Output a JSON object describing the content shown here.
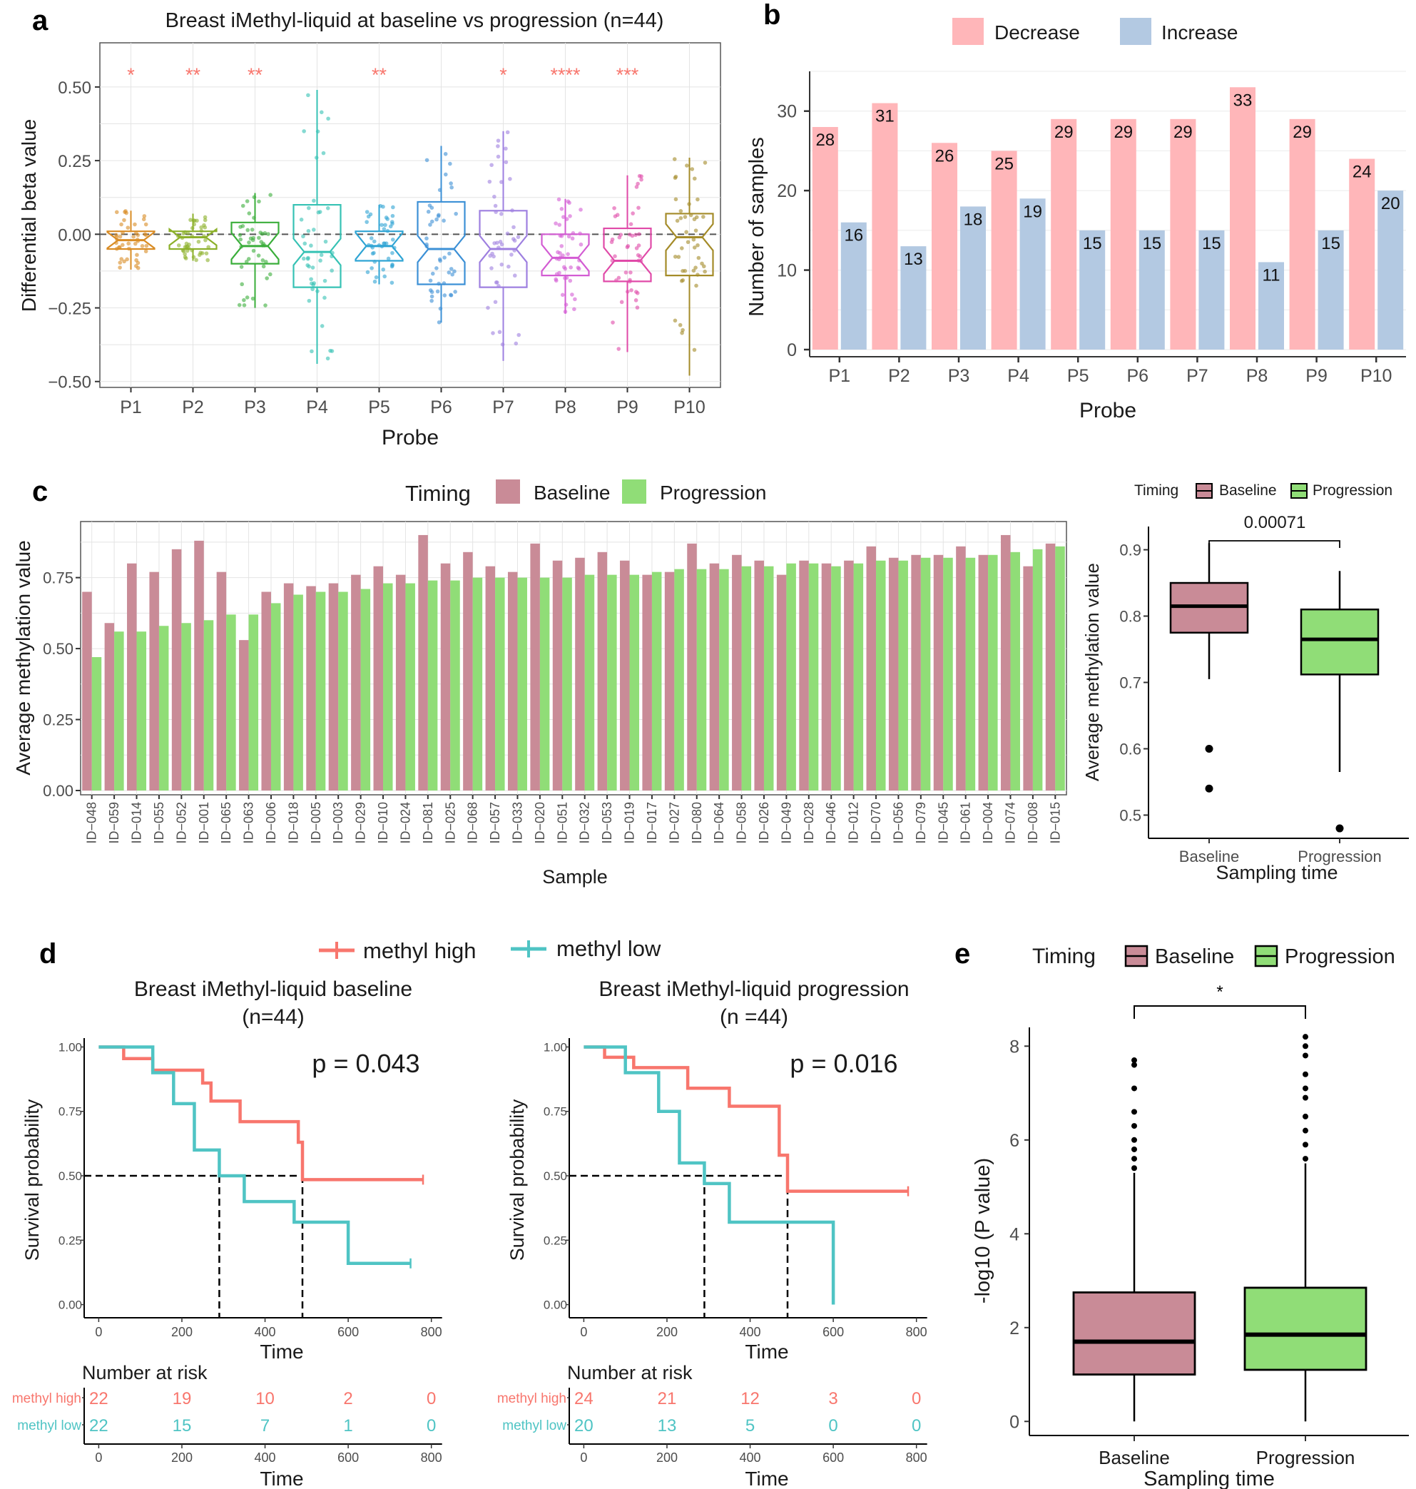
{
  "figure": {
    "panel_letters": [
      "a",
      "b",
      "c",
      "d",
      "e"
    ],
    "colors": {
      "baseline": "#C98B97",
      "progression": "#90DD77",
      "decrease": "#FFB6B9",
      "increase": "#B3C9E2",
      "methyl_high": "#F8766D",
      "methyl_low": "#4FC4C4",
      "star": "#F8766D",
      "grid": "#E4E4E4"
    }
  },
  "chart_data": [
    {
      "id": "a",
      "type": "box",
      "title": "Breast iMethyl-liquid at baseline vs progression (n=44)",
      "xlabel": "Probe",
      "ylabel": "Differential beta value",
      "ylim": [
        -0.52,
        0.65
      ],
      "yticks": [
        -0.5,
        -0.25,
        0.0,
        0.25,
        0.5
      ],
      "ytick_labels": [
        "−0.50",
        "−0.25",
        "0.00",
        "0.25",
        "0.50"
      ],
      "reference_line": 0,
      "categories": [
        "P1",
        "P2",
        "P3",
        "P4",
        "P5",
        "P6",
        "P7",
        "P8",
        "P9",
        "P10"
      ],
      "colors": [
        "#D98C24",
        "#8CB02A",
        "#3AAE3A",
        "#36C2B4",
        "#2EA4D4",
        "#3C90D6",
        "#9E7FE0",
        "#D35CD3",
        "#E04AA8",
        "#A48B28"
      ],
      "significance": [
        "*",
        "**",
        "**",
        "",
        "**",
        "",
        "*",
        "****",
        "***",
        ""
      ],
      "boxes": [
        {
          "min": -0.12,
          "q1": -0.05,
          "median": -0.02,
          "q3": 0.01,
          "max": 0.08
        },
        {
          "min": -0.09,
          "q1": -0.05,
          "median": -0.01,
          "q3": 0.01,
          "max": 0.07
        },
        {
          "min": -0.25,
          "q1": -0.1,
          "median": -0.04,
          "q3": 0.04,
          "max": 0.14
        },
        {
          "min": -0.44,
          "q1": -0.18,
          "median": -0.06,
          "q3": 0.1,
          "max": 0.49
        },
        {
          "min": -0.17,
          "q1": -0.09,
          "median": -0.04,
          "q3": 0.01,
          "max": 0.1
        },
        {
          "min": -0.3,
          "q1": -0.17,
          "median": -0.05,
          "q3": 0.11,
          "max": 0.3
        },
        {
          "min": -0.43,
          "q1": -0.18,
          "median": -0.05,
          "q3": 0.08,
          "max": 0.35
        },
        {
          "min": -0.27,
          "q1": -0.14,
          "median": -0.08,
          "q3": 0.0,
          "max": 0.12
        },
        {
          "min": -0.4,
          "q1": -0.16,
          "median": -0.09,
          "q3": 0.02,
          "max": 0.2
        },
        {
          "min": -0.48,
          "q1": -0.14,
          "median": -0.01,
          "q3": 0.07,
          "max": 0.26
        }
      ]
    },
    {
      "id": "b",
      "type": "bar",
      "xlabel": "Probe",
      "ylabel": "Number of samples",
      "ylim": [
        0,
        35
      ],
      "yticks": [
        0,
        10,
        20,
        30
      ],
      "categories": [
        "P1",
        "P2",
        "P3",
        "P4",
        "P5",
        "P6",
        "P7",
        "P8",
        "P9",
        "P10"
      ],
      "series": [
        {
          "name": "Decrease",
          "values": [
            28,
            31,
            26,
            25,
            29,
            29,
            29,
            33,
            29,
            24
          ]
        },
        {
          "name": "Increase",
          "values": [
            16,
            13,
            18,
            19,
            15,
            15,
            15,
            11,
            15,
            20
          ]
        }
      ]
    },
    {
      "id": "c-bars",
      "type": "bar",
      "legend_title": "Timing",
      "xlabel": "Sample",
      "ylabel": "Average methylation value",
      "ylim": [
        0,
        0.93
      ],
      "yticks": [
        0.0,
        0.25,
        0.5,
        0.75
      ],
      "ytick_labels": [
        "0.00",
        "0.25",
        "0.50",
        "0.75"
      ],
      "categories": [
        "ID−048",
        "ID−059",
        "ID−014",
        "ID−055",
        "ID−052",
        "ID−001",
        "ID−065",
        "ID−063",
        "ID−006",
        "ID−018",
        "ID−005",
        "ID−003",
        "ID−029",
        "ID−010",
        "ID−024",
        "ID−081",
        "ID−025",
        "ID−068",
        "ID−057",
        "ID−033",
        "ID−020",
        "ID−051",
        "ID−032",
        "ID−053",
        "ID−019",
        "ID−017",
        "ID−027",
        "ID−080",
        "ID−064",
        "ID−058",
        "ID−026",
        "ID−049",
        "ID−028",
        "ID−046",
        "ID−012",
        "ID−070",
        "ID−056",
        "ID−079",
        "ID−045",
        "ID−061",
        "ID−004",
        "ID−074",
        "ID−008",
        "ID−015"
      ],
      "series": [
        {
          "name": "Baseline",
          "values": [
            0.7,
            0.59,
            0.8,
            0.77,
            0.85,
            0.88,
            0.77,
            0.53,
            0.7,
            0.73,
            0.72,
            0.73,
            0.76,
            0.79,
            0.76,
            0.9,
            0.8,
            0.84,
            0.79,
            0.77,
            0.87,
            0.81,
            0.82,
            0.84,
            0.81,
            0.76,
            0.77,
            0.87,
            0.8,
            0.83,
            0.81,
            0.76,
            0.81,
            0.8,
            0.81,
            0.86,
            0.82,
            0.83,
            0.83,
            0.86,
            0.83,
            0.9,
            0.79,
            0.87
          ]
        },
        {
          "name": "Progression",
          "values": [
            0.47,
            0.56,
            0.56,
            0.58,
            0.59,
            0.6,
            0.62,
            0.62,
            0.66,
            0.69,
            0.7,
            0.7,
            0.71,
            0.73,
            0.73,
            0.74,
            0.74,
            0.75,
            0.75,
            0.75,
            0.75,
            0.75,
            0.76,
            0.76,
            0.76,
            0.77,
            0.78,
            0.78,
            0.78,
            0.79,
            0.79,
            0.8,
            0.8,
            0.79,
            0.8,
            0.81,
            0.81,
            0.82,
            0.82,
            0.82,
            0.83,
            0.84,
            0.85,
            0.86
          ]
        }
      ]
    },
    {
      "id": "c-box",
      "type": "box",
      "legend_title": "Timing",
      "xlabel": "Sampling time",
      "ylabel": "Average methylation value",
      "ylim": [
        0.465,
        0.935
      ],
      "yticks": [
        0.5,
        0.6,
        0.7,
        0.8,
        0.9
      ],
      "ytick_labels": [
        "0.5",
        "0.6",
        "0.7",
        "0.8",
        "0.9"
      ],
      "categories": [
        "Baseline",
        "Progression"
      ],
      "p_value": "0.00071",
      "boxes": [
        {
          "min": 0.705,
          "q1": 0.775,
          "median": 0.815,
          "q3": 0.85,
          "max": 0.91,
          "outliers": [
            0.6,
            0.54
          ]
        },
        {
          "min": 0.565,
          "q1": 0.712,
          "median": 0.765,
          "q3": 0.81,
          "max": 0.868,
          "outliers": [
            0.48
          ]
        }
      ]
    },
    {
      "id": "d-baseline",
      "type": "line",
      "subtype": "kaplan-meier",
      "title_lines": [
        "Breast iMethyl-liquid baseline",
        "(n=44)"
      ],
      "p_text": "p = 0.043",
      "xlabel": "Time",
      "ylabel": "Survival probability",
      "xlim": [
        -35,
        840
      ],
      "ylim": [
        -0.04,
        1.04
      ],
      "xticks": [
        0,
        200,
        400,
        600,
        800
      ],
      "yticks": [
        0.0,
        0.25,
        0.5,
        0.75,
        1.0
      ],
      "ytick_labels": [
        "0.00",
        "0.25",
        "0.50",
        "0.75",
        "1.00"
      ],
      "median_lines": [
        290,
        490
      ],
      "series": [
        {
          "name": "methyl high",
          "x": [
            0,
            60,
            130,
            250,
            270,
            340,
            480,
            490,
            780
          ],
          "y": [
            1.0,
            0.955,
            0.91,
            0.86,
            0.79,
            0.71,
            0.63,
            0.485,
            0.485
          ]
        },
        {
          "name": "methyl low",
          "x": [
            0,
            130,
            180,
            230,
            290,
            350,
            470,
            600,
            750
          ],
          "y": [
            1.0,
            0.9,
            0.78,
            0.6,
            0.5,
            0.4,
            0.32,
            0.16,
            0.16
          ]
        }
      ],
      "risk_table": {
        "title": "Number at risk",
        "rows": [
          {
            "name": "methyl high",
            "values": [
              "22",
              "19",
              "10",
              "2",
              "0"
            ]
          },
          {
            "name": "methyl low",
            "values": [
              "22",
              "15",
              "7",
              "1",
              "0"
            ]
          }
        ]
      }
    },
    {
      "id": "d-progression",
      "type": "line",
      "subtype": "kaplan-meier",
      "title_lines": [
        "Breast iMethyl-liquid progression",
        "(n =44)"
      ],
      "p_text": "p = 0.016",
      "xlabel": "Time",
      "ylabel": "Survival probability",
      "xlim": [
        -35,
        840
      ],
      "ylim": [
        -0.04,
        1.04
      ],
      "xticks": [
        0,
        200,
        400,
        600,
        800
      ],
      "yticks": [
        0.0,
        0.25,
        0.5,
        0.75,
        1.0
      ],
      "ytick_labels": [
        "0.00",
        "0.25",
        "0.50",
        "0.75",
        "1.00"
      ],
      "median_lines": [
        290,
        490
      ],
      "series": [
        {
          "name": "methyl high",
          "x": [
            0,
            50,
            120,
            250,
            350,
            470,
            490,
            780
          ],
          "y": [
            1.0,
            0.96,
            0.92,
            0.84,
            0.77,
            0.58,
            0.44,
            0.44
          ]
        },
        {
          "name": "methyl low",
          "x": [
            0,
            100,
            180,
            230,
            290,
            350,
            600,
            600
          ],
          "y": [
            1.0,
            0.9,
            0.75,
            0.55,
            0.47,
            0.32,
            0.32,
            0.0
          ]
        }
      ],
      "risk_table": {
        "title": "Number at risk",
        "rows": [
          {
            "name": "methyl high",
            "values": [
              "24",
              "21",
              "12",
              "3",
              "0"
            ]
          },
          {
            "name": "methyl low",
            "values": [
              "20",
              "13",
              "5",
              "0",
              "0"
            ]
          }
        ]
      }
    },
    {
      "id": "e",
      "type": "box",
      "legend_title": "Timing",
      "xlabel": "Sampling time",
      "ylabel": "-log10 (P value)",
      "ylim": [
        -0.3,
        8.4
      ],
      "yticks": [
        0,
        2,
        4,
        6,
        8
      ],
      "categories": [
        "Baseline",
        "Progression"
      ],
      "significance": "*",
      "boxes": [
        {
          "min": 0.0,
          "q1": 1.0,
          "median": 1.7,
          "q3": 2.75,
          "max": 5.3,
          "outliers": [
            5.4,
            5.6,
            5.8,
            6.0,
            6.3,
            6.6,
            7.1,
            7.6,
            7.7
          ]
        },
        {
          "min": 0.0,
          "q1": 1.1,
          "median": 1.85,
          "q3": 2.85,
          "max": 5.5,
          "outliers": [
            5.6,
            5.9,
            6.2,
            6.5,
            6.9,
            7.1,
            7.4,
            7.8,
            8.0,
            8.2
          ]
        }
      ]
    }
  ]
}
